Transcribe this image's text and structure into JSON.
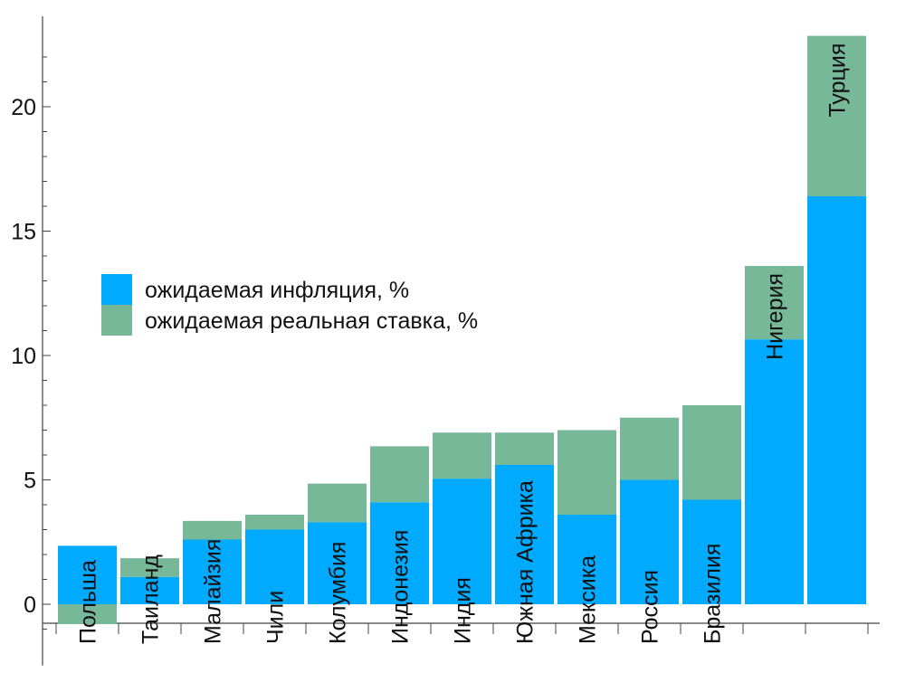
{
  "chart_data": {
    "type": "bar",
    "stacked": true,
    "categories": [
      "Польша",
      "Таиланд",
      "Малайзия",
      "Чили",
      "Колумбия",
      "Индонезия",
      "Индия",
      "Южная Африка",
      "Мексика",
      "Россия",
      "Бразилия",
      "Нигерия",
      "Турция"
    ],
    "series": [
      {
        "name": "ожидаемая инфляция, %",
        "color": "#00aaff",
        "values": [
          2.35,
          1.1,
          2.6,
          3.0,
          3.3,
          4.1,
          5.05,
          5.6,
          3.6,
          5.0,
          4.2,
          10.65,
          16.4
        ]
      },
      {
        "name": "ожидаемая реальная ставка, %",
        "color": "#77b898",
        "values": [
          -0.8,
          0.75,
          0.75,
          0.6,
          1.55,
          2.25,
          1.85,
          1.3,
          3.4,
          2.5,
          3.8,
          2.95,
          6.45
        ]
      }
    ],
    "yticks": [
      0,
      5,
      10,
      15,
      20
    ],
    "ylim": [
      -2.1,
      24
    ],
    "legend_position": "center-left",
    "grid": false,
    "bar_labels": "rotated-inside"
  }
}
